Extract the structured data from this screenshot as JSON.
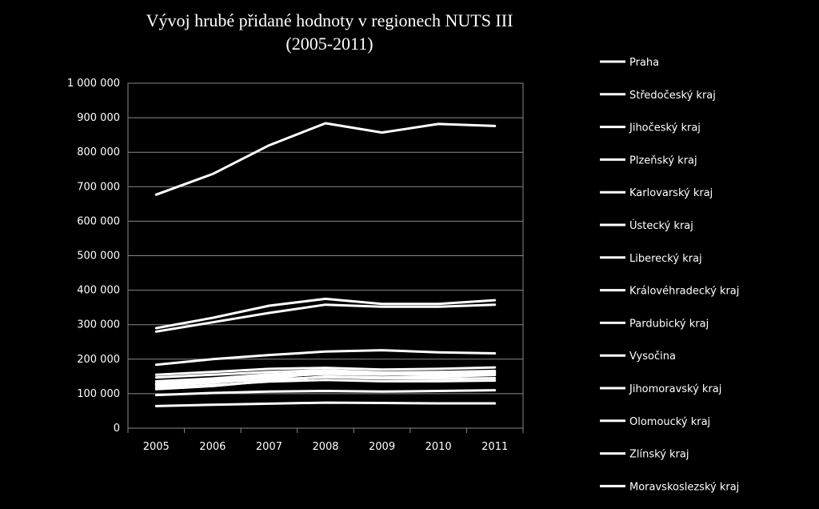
{
  "chart_data": {
    "type": "line",
    "title": [
      "Vývoj hrubé přidané hodnoty v regionech NUTS III",
      "(2005-2011)"
    ],
    "xlabel": "",
    "ylabel": "",
    "x": [
      "2005",
      "2006",
      "2007",
      "2008",
      "2009",
      "2010",
      "2011"
    ],
    "ylim": [
      0,
      1000000
    ],
    "yticks": [
      0,
      100000,
      200000,
      300000,
      400000,
      500000,
      600000,
      700000,
      800000,
      900000,
      1000000
    ],
    "ytick_labels": [
      "0",
      "100 000",
      "200 000",
      "300 000",
      "400 000",
      "500 000",
      "600 000",
      "700 000",
      "800 000",
      "900 000",
      "1 000 000"
    ],
    "grid": true,
    "legend_position": "right",
    "line_color": "#ffffff",
    "series": [
      {
        "name": "Praha",
        "values": [
          677000,
          737000,
          820000,
          884000,
          857000,
          882000,
          876000
        ]
      },
      {
        "name": "Středočeský kraj",
        "values": [
          290000,
          320000,
          355000,
          375000,
          360000,
          360000,
          371000
        ]
      },
      {
        "name": "Jihočeský kraj",
        "values": [
          155000,
          163000,
          172000,
          175000,
          170000,
          172000,
          176000
        ]
      },
      {
        "name": "Plzeňský kraj",
        "values": [
          147000,
          155000,
          163000,
          168000,
          162000,
          163000,
          166000
        ]
      },
      {
        "name": "Karlovarský kraj",
        "values": [
          64000,
          68000,
          71000,
          74000,
          73000,
          72000,
          72000
        ]
      },
      {
        "name": "Ústecký kraj",
        "values": [
          136000,
          144000,
          156000,
          162000,
          156000,
          155000,
          157000
        ]
      },
      {
        "name": "Liberecký kraj",
        "values": [
          96000,
          102000,
          106000,
          108000,
          106000,
          108000,
          110000
        ]
      },
      {
        "name": "Královéhradecký kraj",
        "values": [
          127000,
          134000,
          141000,
          148000,
          144000,
          143000,
          145000
        ]
      },
      {
        "name": "Pardubický kraj",
        "values": [
          116000,
          125000,
          135000,
          140000,
          136000,
          136000,
          138000
        ]
      },
      {
        "name": "Vysočina",
        "values": [
          113000,
          122000,
          137000,
          150000,
          147000,
          149000,
          154000
        ]
      },
      {
        "name": "Jihomoravský kraj",
        "values": [
          280000,
          307000,
          334000,
          358000,
          352000,
          352000,
          358000
        ]
      },
      {
        "name": "Olomoucký kraj",
        "values": [
          130000,
          140000,
          150000,
          157000,
          155000,
          157000,
          160000
        ]
      },
      {
        "name": "Zlínský kraj",
        "values": [
          122000,
          132000,
          145000,
          160000,
          156000,
          158000,
          163000
        ]
      },
      {
        "name": "Moravskoslezský kraj",
        "values": [
          184000,
          200000,
          212000,
          222000,
          226000,
          220000,
          217000
        ]
      }
    ]
  }
}
